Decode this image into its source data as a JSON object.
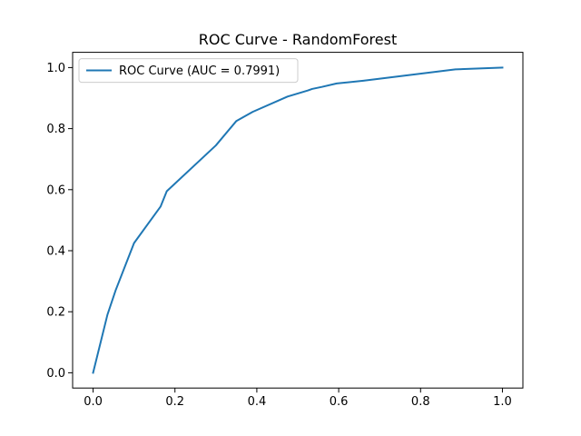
{
  "chart_data": {
    "type": "line",
    "title": "ROC Curve - RandomForest",
    "xlabel": "",
    "ylabel": "",
    "xlim": [
      -0.05,
      1.05
    ],
    "ylim": [
      -0.05,
      1.05
    ],
    "x_ticks": [
      0.0,
      0.2,
      0.4,
      0.6,
      0.8,
      1.0
    ],
    "y_ticks": [
      0.0,
      0.2,
      0.4,
      0.6,
      0.8,
      1.0
    ],
    "x_tick_labels": [
      "0.0",
      "0.2",
      "0.4",
      "0.6",
      "0.8",
      "1.0"
    ],
    "y_tick_labels": [
      "0.0",
      "0.2",
      "0.4",
      "0.6",
      "0.8",
      "1.0"
    ],
    "grid": false,
    "legend": {
      "placement": "top-left"
    },
    "series": [
      {
        "name": "ROC Curve (AUC = 0.7991)",
        "color": "#1f77b4",
        "x": [
          0.0,
          0.035,
          0.055,
          0.1,
          0.165,
          0.18,
          0.3,
          0.35,
          0.39,
          0.475,
          0.525,
          0.535,
          0.56,
          0.595,
          0.66,
          0.885,
          1.0
        ],
        "y": [
          0.0,
          0.19,
          0.27,
          0.425,
          0.545,
          0.595,
          0.745,
          0.825,
          0.855,
          0.905,
          0.925,
          0.93,
          0.937,
          0.948,
          0.957,
          0.994,
          1.0
        ]
      }
    ]
  }
}
